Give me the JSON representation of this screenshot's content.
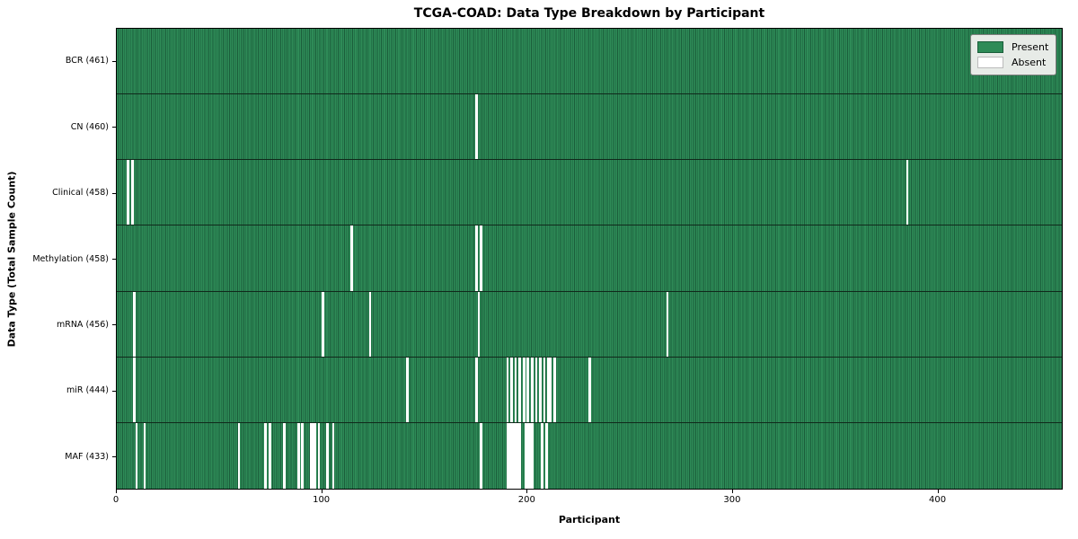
{
  "title": "TCGA-COAD: Data Type Breakdown by Participant",
  "x_axis_label": "Participant",
  "y_axis_label": "Data Type (Total Sample Count)",
  "legend": {
    "present_label": "Present",
    "absent_label": "Absent"
  },
  "colors": {
    "present": "#2e8b57",
    "present_edge": "#1b5e3b",
    "absent": "#ffffff",
    "legend_bg": "#e7ebe7",
    "frame": "#000000"
  },
  "chart_data": {
    "type": "heatmap",
    "title": "TCGA-COAD: Data Type Breakdown by Participant",
    "xlabel": "Participant",
    "ylabel": "Data Type (Total Sample Count)",
    "n_participants": 461,
    "x_ticks": [
      0,
      100,
      200,
      300,
      400
    ],
    "legend_position": "upper right",
    "cell_states": {
      "present": "green",
      "absent": "white"
    },
    "rows": [
      {
        "key": "bcr",
        "label": "BCR (461)",
        "data_type": "BCR",
        "sample_count": 461,
        "absent_participants": []
      },
      {
        "key": "cn",
        "label": "CN (460)",
        "data_type": "CN",
        "sample_count": 460,
        "absent_participants": [
          175
        ]
      },
      {
        "key": "clinical",
        "label": "Clinical (458)",
        "data_type": "Clinical",
        "sample_count": 458,
        "absent_participants": [
          5,
          7,
          385
        ]
      },
      {
        "key": "methylation",
        "label": "Methylation (458)",
        "data_type": "Methylation",
        "sample_count": 458,
        "absent_participants": [
          114,
          175,
          177
        ]
      },
      {
        "key": "mrna",
        "label": "mRNA (456)",
        "data_type": "mRNA",
        "sample_count": 456,
        "absent_participants": [
          8,
          100,
          123,
          176,
          268
        ]
      },
      {
        "key": "mir",
        "label": "miR (444)",
        "data_type": "miR",
        "sample_count": 444,
        "absent_participants": [
          8,
          141,
          175,
          190,
          192,
          194,
          196,
          198,
          200,
          202,
          204,
          206,
          208,
          210,
          211,
          213,
          230
        ]
      },
      {
        "key": "maf",
        "label": "MAF (433)",
        "data_type": "MAF",
        "sample_count": 433,
        "absent_participants": [
          9,
          13,
          59,
          72,
          74,
          81,
          88,
          90,
          94,
          95,
          96,
          98,
          102,
          105,
          177,
          190,
          191,
          192,
          193,
          194,
          195,
          196,
          199,
          200,
          201,
          202,
          207,
          209
        ]
      }
    ]
  }
}
